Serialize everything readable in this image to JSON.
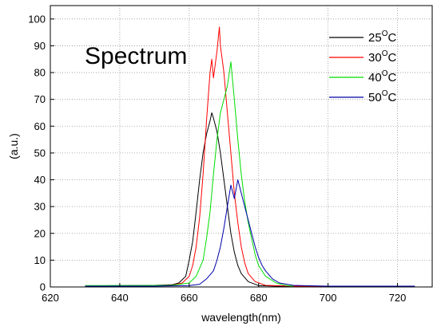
{
  "chart_data": {
    "type": "line",
    "title": "",
    "annotation": "Spectrum",
    "xlabel": "wavelength(nm)",
    "ylabel": "(a.u.)",
    "xlim": [
      620,
      730
    ],
    "ylim": [
      0,
      105
    ],
    "xticks": [
      620,
      640,
      660,
      680,
      700,
      720
    ],
    "yticks": [
      0,
      10,
      20,
      30,
      40,
      50,
      60,
      70,
      80,
      90,
      100
    ],
    "grid": true,
    "legend_position": "top-right",
    "series": [
      {
        "name": "25",
        "name_sup": "O",
        "name_suffix": "C",
        "color": "#000000",
        "points": [
          [
            630,
            0.4
          ],
          [
            640,
            0.5
          ],
          [
            650,
            0.6
          ],
          [
            655,
            0.8
          ],
          [
            657,
            1.5
          ],
          [
            659,
            4
          ],
          [
            660,
            10
          ],
          [
            661,
            17
          ],
          [
            662,
            28
          ],
          [
            663,
            40
          ],
          [
            664,
            50
          ],
          [
            665,
            57
          ],
          [
            666,
            62
          ],
          [
            666.5,
            65
          ],
          [
            667,
            63
          ],
          [
            668,
            58
          ],
          [
            669,
            50
          ],
          [
            670,
            40
          ],
          [
            671,
            30
          ],
          [
            672,
            20
          ],
          [
            673,
            13
          ],
          [
            674,
            8
          ],
          [
            675,
            5
          ],
          [
            677,
            2
          ],
          [
            680,
            0.5
          ],
          [
            685,
            0.3
          ],
          [
            690,
            0.3
          ]
        ]
      },
      {
        "name": "30",
        "name_sup": "O",
        "name_suffix": "C",
        "color": "#ff0000",
        "points": [
          [
            630,
            0.3
          ],
          [
            645,
            0.4
          ],
          [
            655,
            0.6
          ],
          [
            658,
            1.5
          ],
          [
            660,
            4
          ],
          [
            661,
            8
          ],
          [
            662,
            15
          ],
          [
            663,
            26
          ],
          [
            664,
            42
          ],
          [
            665,
            62
          ],
          [
            666,
            80
          ],
          [
            666.5,
            85
          ],
          [
            667,
            78
          ],
          [
            668,
            88
          ],
          [
            668.7,
            97
          ],
          [
            669,
            90
          ],
          [
            670,
            80
          ],
          [
            671,
            65
          ],
          [
            672,
            50
          ],
          [
            673,
            35
          ],
          [
            674,
            24
          ],
          [
            675,
            15
          ],
          [
            676,
            9
          ],
          [
            677,
            5
          ],
          [
            679,
            2
          ],
          [
            682,
            0.6
          ],
          [
            690,
            0.3
          ],
          [
            700,
            0.3
          ]
        ]
      },
      {
        "name": "40",
        "name_sup": "O",
        "name_suffix": "C",
        "color": "#00dd00",
        "points": [
          [
            630,
            0.5
          ],
          [
            645,
            0.5
          ],
          [
            655,
            0.6
          ],
          [
            660,
            1.5
          ],
          [
            662,
            4
          ],
          [
            664,
            10
          ],
          [
            665,
            18
          ],
          [
            666,
            28
          ],
          [
            667,
            42
          ],
          [
            668,
            55
          ],
          [
            669,
            65
          ],
          [
            670,
            70
          ],
          [
            671,
            75
          ],
          [
            672,
            84
          ],
          [
            673,
            70
          ],
          [
            674,
            55
          ],
          [
            675,
            42
          ],
          [
            676,
            32
          ],
          [
            677,
            24
          ],
          [
            678,
            18
          ],
          [
            679,
            12
          ],
          [
            680,
            8
          ],
          [
            682,
            4
          ],
          [
            685,
            1.5
          ],
          [
            688,
            0.5
          ],
          [
            690,
            0.3
          ]
        ]
      },
      {
        "name": "50",
        "name_sup": "O",
        "name_suffix": "C",
        "color": "#0000aa",
        "points": [
          [
            630,
            0.3
          ],
          [
            650,
            0.3
          ],
          [
            660,
            0.5
          ],
          [
            663,
            1
          ],
          [
            665,
            3
          ],
          [
            667,
            6
          ],
          [
            668,
            10
          ],
          [
            669,
            15
          ],
          [
            670,
            22
          ],
          [
            671,
            30
          ],
          [
            672,
            38
          ],
          [
            673,
            33
          ],
          [
            674,
            40
          ],
          [
            675,
            35
          ],
          [
            676,
            30
          ],
          [
            677,
            25
          ],
          [
            678,
            20
          ],
          [
            679,
            15
          ],
          [
            680,
            11
          ],
          [
            681,
            8
          ],
          [
            682,
            6
          ],
          [
            684,
            3
          ],
          [
            686,
            1.5
          ],
          [
            690,
            0.6
          ],
          [
            700,
            0.3
          ],
          [
            710,
            0.3
          ],
          [
            720,
            0.3
          ],
          [
            725,
            0.3
          ]
        ]
      }
    ]
  }
}
